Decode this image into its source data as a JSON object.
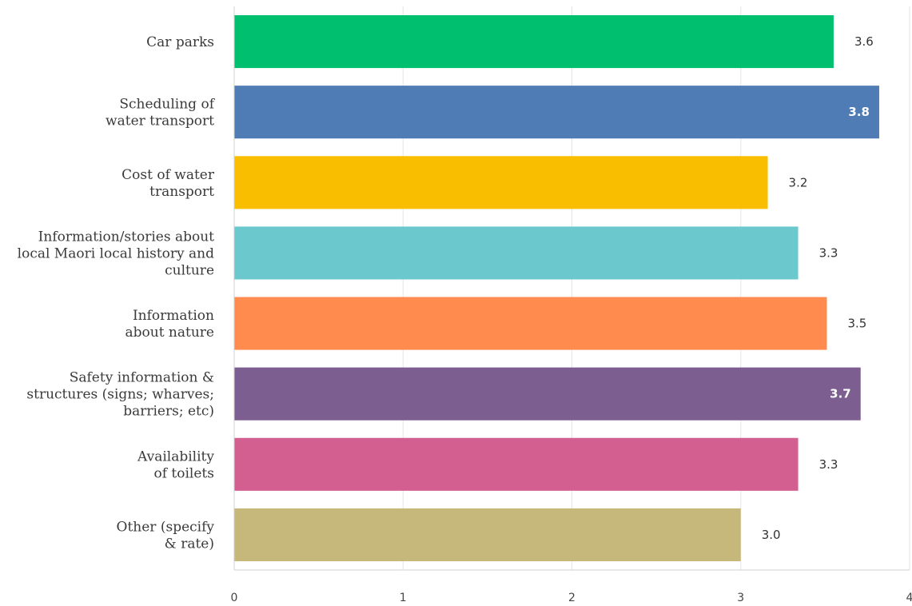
{
  "chart_data": {
    "type": "bar",
    "orientation": "horizontal",
    "categories": [
      "Car parks",
      "Scheduling of water transport",
      "Cost of water transport",
      "Information/stories about local Maori local history and culture",
      "Information about nature",
      "Safety information & structures (signs; wharves; barriers; etc)",
      "Availability of toilets",
      "Other (specify & rate)"
    ],
    "category_lines": [
      [
        "Car parks"
      ],
      [
        "Scheduling of",
        "water transport"
      ],
      [
        "Cost of water",
        "transport"
      ],
      [
        "Information/stories about",
        "local Maori local history and",
        "culture"
      ],
      [
        "Information",
        "about nature"
      ],
      [
        "Safety information &",
        "structures (signs; wharves;",
        "barriers; etc)"
      ],
      [
        "Availability",
        "of toilets"
      ],
      [
        "Other (specify",
        "& rate)"
      ]
    ],
    "values": [
      3.55,
      3.82,
      3.16,
      3.34,
      3.51,
      3.71,
      3.34,
      3.0
    ],
    "value_labels": [
      "3.6",
      "3.8",
      "3.2",
      "3.3",
      "3.5",
      "3.7",
      "3.3",
      "3.0"
    ],
    "label_inside": [
      false,
      true,
      false,
      false,
      false,
      true,
      false,
      false
    ],
    "colors": [
      "#00bf6f",
      "#507cb6",
      "#f9be00",
      "#6bc8cd",
      "#ff8b4f",
      "#7d5e90",
      "#d25f90",
      "#c5b87a"
    ],
    "x_ticks": [
      "0",
      "1",
      "2",
      "3",
      "4"
    ],
    "xlim": [
      0,
      4
    ],
    "grid": true,
    "title": "",
    "xlabel": "",
    "ylabel": ""
  }
}
